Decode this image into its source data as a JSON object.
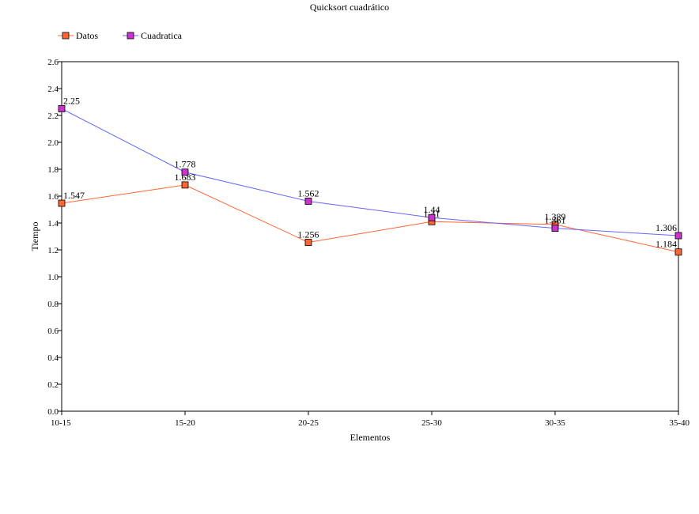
{
  "chart_data": {
    "type": "line",
    "title": "Quicksort cuadrático",
    "xlabel": "Elementos",
    "ylabel": "Tiempo",
    "categories": [
      "10-15",
      "15-20",
      "20-25",
      "25-30",
      "30-35",
      "35-40"
    ],
    "ylim": [
      0,
      2.6
    ],
    "ytick_step": 0.2,
    "y_tick_labels": [
      "0.0",
      "0.2",
      "0.4",
      "0.6",
      "0.8",
      "1.0",
      "1.2",
      "1.4",
      "1.6",
      "1.8",
      "2.0",
      "2.2",
      "2.4",
      "2.6"
    ],
    "legend": "top-left",
    "grid": false,
    "series": [
      {
        "name": "Datos",
        "line_color": "#ff6633",
        "marker_color": "#ff6633",
        "values": [
          1.547,
          1.683,
          1.256,
          1.41,
          1.389,
          1.184
        ],
        "value_labels": [
          "1.547",
          "1.683",
          "1.256",
          "1.41",
          "1.389",
          "1.184"
        ]
      },
      {
        "name": "Cuadratica",
        "line_color": "#6666ff",
        "marker_color": "#cc33cc",
        "values": [
          2.25,
          1.778,
          1.562,
          1.44,
          1.361,
          1.306
        ],
        "value_labels": [
          "2.25",
          "1.778",
          "1.562",
          "1.44",
          "1.361",
          "1.306"
        ]
      }
    ]
  }
}
